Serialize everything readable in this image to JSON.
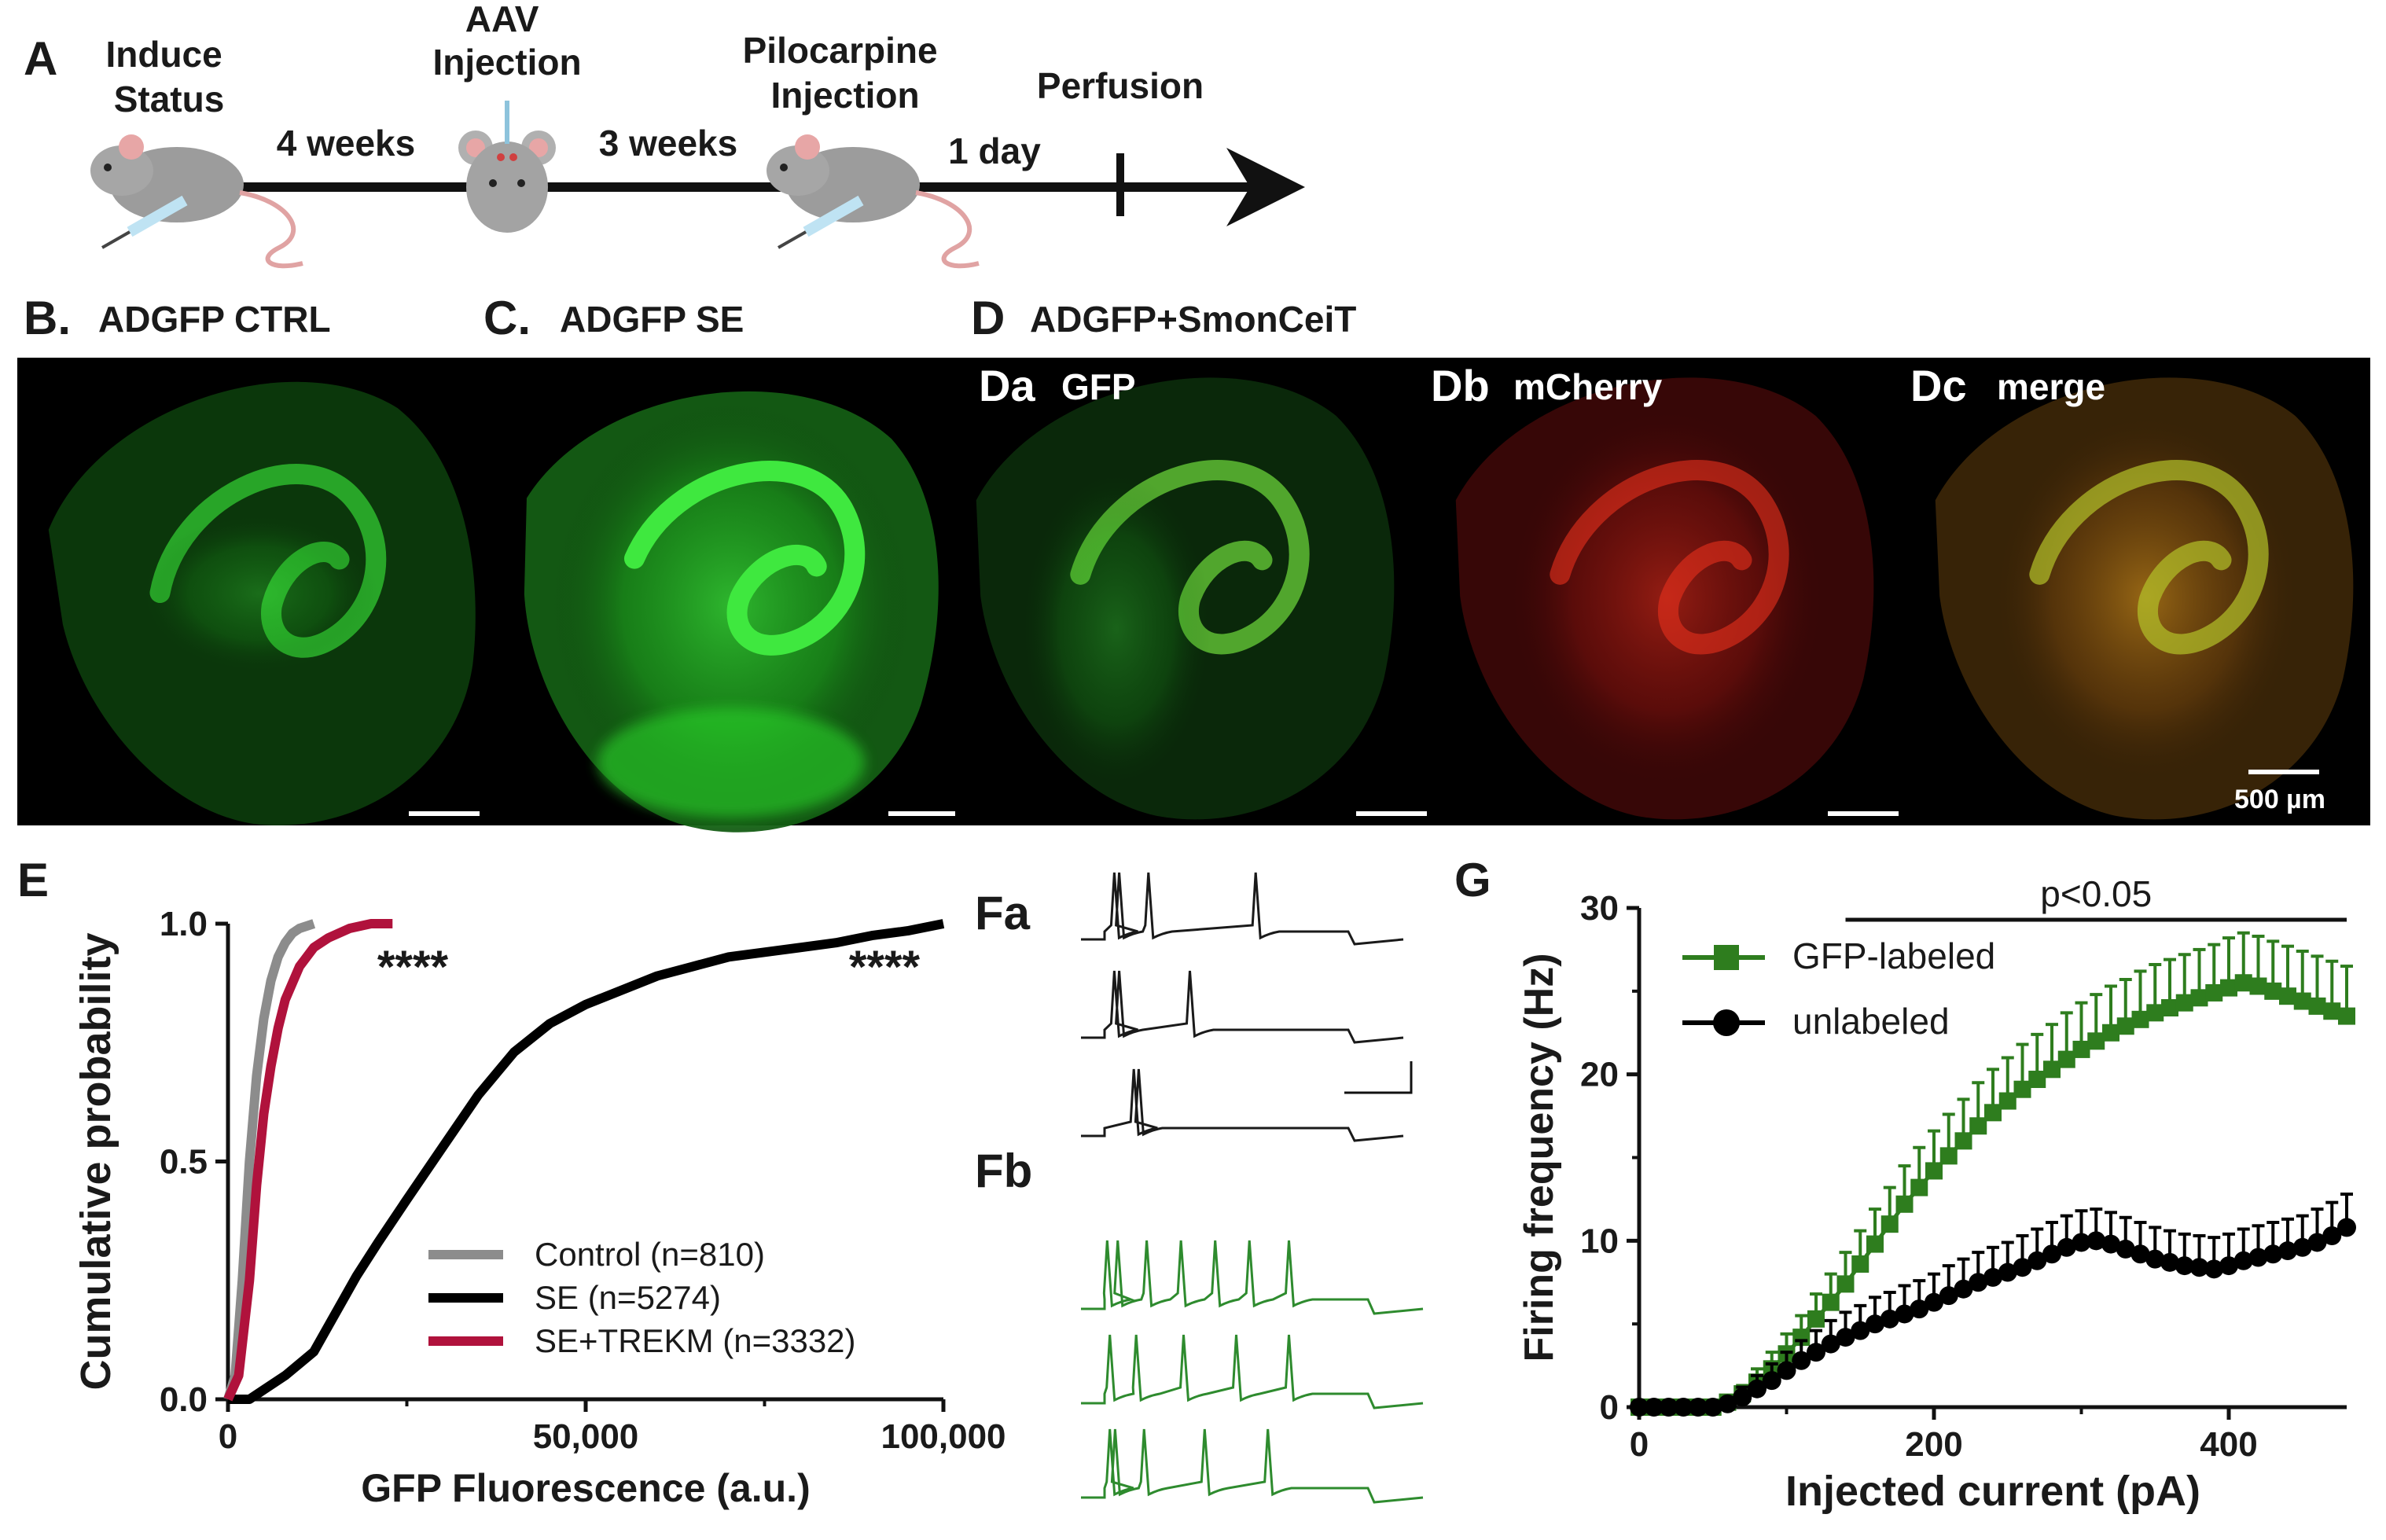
{
  "panel_A": {
    "letter": "A",
    "steps": [
      "Induce\nStatus",
      "AAV\nInjection",
      "Pilocarpine\nInjection",
      "Perfusion"
    ],
    "intervals": [
      "4 weeks",
      "3 weeks",
      "1 day"
    ]
  },
  "images": {
    "B": {
      "letter": "B.",
      "title": "ADGFP CTRL"
    },
    "C": {
      "letter": "C.",
      "title": "ADGFP SE"
    },
    "D": {
      "letter": "D",
      "title": "ADGFP+SmonCeiT"
    },
    "Da": {
      "letter": "Da",
      "title": "GFP"
    },
    "Db": {
      "letter": "Db",
      "title": "mCherry"
    },
    "Dc": {
      "letter": "Dc",
      "title": "merge"
    },
    "scale_bar": "500 µm",
    "colors": {
      "gfp": "#2fd42f",
      "mcherry": "#e3241c",
      "background": "#000000"
    }
  },
  "panel_E": {
    "letter": "E"
  },
  "panel_F": {
    "letter_a": "Fa",
    "letter_b": "Fb",
    "trace_colors": {
      "a": "#1a1a1a",
      "b": "#2e8b2e"
    }
  },
  "panel_G": {
    "letter": "G"
  },
  "chart_data": [
    {
      "type": "line",
      "panel": "E",
      "xlabel": "GFP Fluorescence (a.u.)",
      "ylabel": "Cumulative probability",
      "xlim": [
        0,
        100000
      ],
      "ylim": [
        0,
        1.0
      ],
      "xticks": [
        "0",
        "50,000",
        "100,000"
      ],
      "yticks": [
        "0.0",
        "0.5",
        "1.0"
      ],
      "legend_position": "bottom-right",
      "annotations": [
        "****",
        "****"
      ],
      "series": [
        {
          "name": "Control (n=810)",
          "color": "#8c8c8c",
          "x": [
            0,
            1000,
            2000,
            3000,
            4000,
            5000,
            6000,
            7000,
            8000,
            9000,
            10000,
            12000
          ],
          "y": [
            0,
            0.05,
            0.25,
            0.5,
            0.68,
            0.8,
            0.88,
            0.93,
            0.96,
            0.98,
            0.99,
            1.0
          ]
        },
        {
          "name": "SE (n=5274)",
          "color": "#000000",
          "x": [
            0,
            3000,
            5000,
            8000,
            12000,
            15000,
            18000,
            21000,
            25000,
            30000,
            35000,
            40000,
            45000,
            50000,
            55000,
            60000,
            65000,
            70000,
            75000,
            80000,
            85000,
            90000,
            95000,
            100000
          ],
          "y": [
            0,
            0,
            0.02,
            0.05,
            0.1,
            0.18,
            0.26,
            0.33,
            0.42,
            0.53,
            0.64,
            0.73,
            0.79,
            0.83,
            0.86,
            0.89,
            0.91,
            0.93,
            0.94,
            0.95,
            0.96,
            0.975,
            0.985,
            1.0
          ]
        },
        {
          "name": "SE+TREKM (n=3332)",
          "color": "#b0123c",
          "x": [
            0,
            1500,
            3000,
            4000,
            5000,
            6000,
            7000,
            8000,
            10000,
            12000,
            14000,
            17000,
            20000,
            23000
          ],
          "y": [
            0,
            0.05,
            0.25,
            0.45,
            0.6,
            0.7,
            0.78,
            0.84,
            0.91,
            0.95,
            0.97,
            0.99,
            1.0,
            1.0
          ]
        }
      ]
    },
    {
      "type": "line",
      "panel": "G",
      "xlabel": "Injected current (pA)",
      "ylabel": "Firing frequency (Hz)",
      "xlim": [
        0,
        480
      ],
      "ylim": [
        0,
        30
      ],
      "xticks": [
        "0",
        "200",
        "400"
      ],
      "yticks": [
        "0",
        "10",
        "20",
        "30"
      ],
      "legend_position": "top-left",
      "significance": {
        "text": "p<0.05",
        "x_start": 140,
        "x_end": 480
      },
      "series": [
        {
          "name": "GFP-labeled",
          "color": "#2e7d1e",
          "marker": "square",
          "x": [
            0,
            10,
            20,
            30,
            40,
            50,
            60,
            70,
            80,
            90,
            100,
            110,
            120,
            130,
            140,
            150,
            160,
            170,
            180,
            190,
            200,
            210,
            220,
            230,
            240,
            250,
            260,
            270,
            280,
            290,
            300,
            310,
            320,
            330,
            340,
            350,
            360,
            370,
            380,
            390,
            400,
            410,
            420,
            430,
            440,
            450,
            460,
            470,
            480
          ],
          "y": [
            0,
            0,
            0,
            0,
            0,
            0,
            0.3,
            0.8,
            1.5,
            2.3,
            3.2,
            4.2,
            5.3,
            6.3,
            7.4,
            8.6,
            9.8,
            11.0,
            12.2,
            13.2,
            14.2,
            15.1,
            16.0,
            16.9,
            17.7,
            18.4,
            19.1,
            19.7,
            20.3,
            20.9,
            21.5,
            22.0,
            22.5,
            22.9,
            23.3,
            23.7,
            24.0,
            24.3,
            24.6,
            24.9,
            25.2,
            25.5,
            25.3,
            25.0,
            24.7,
            24.4,
            24.1,
            23.8,
            23.5
          ],
          "err": [
            0,
            0,
            0,
            0,
            0,
            0,
            0.2,
            0.5,
            0.8,
            1.0,
            1.2,
            1.3,
            1.5,
            1.7,
            1.9,
            2.0,
            2.1,
            2.2,
            2.3,
            2.4,
            2.4,
            2.5,
            2.5,
            2.6,
            2.6,
            2.6,
            2.7,
            2.7,
            2.7,
            2.8,
            2.8,
            2.8,
            2.8,
            2.8,
            2.9,
            2.9,
            2.9,
            2.9,
            2.9,
            2.9,
            3.0,
            3.0,
            3.0,
            3.0,
            3.0,
            3.0,
            3.0,
            3.0,
            3.0
          ]
        },
        {
          "name": "unlabeled",
          "color": "#000000",
          "marker": "circle",
          "x": [
            0,
            10,
            20,
            30,
            40,
            50,
            60,
            70,
            80,
            90,
            100,
            110,
            120,
            130,
            140,
            150,
            160,
            170,
            180,
            190,
            200,
            210,
            220,
            230,
            240,
            250,
            260,
            270,
            280,
            290,
            300,
            310,
            320,
            330,
            340,
            350,
            360,
            370,
            380,
            390,
            400,
            410,
            420,
            430,
            440,
            450,
            460,
            470,
            480
          ],
          "y": [
            0,
            0,
            0,
            0,
            0,
            0,
            0.2,
            0.6,
            1.1,
            1.6,
            2.2,
            2.8,
            3.3,
            3.8,
            4.2,
            4.6,
            5.0,
            5.3,
            5.6,
            5.9,
            6.3,
            6.7,
            7.1,
            7.5,
            7.8,
            8.1,
            8.4,
            8.8,
            9.2,
            9.6,
            9.9,
            10.0,
            9.8,
            9.5,
            9.2,
            8.9,
            8.7,
            8.5,
            8.4,
            8.3,
            8.5,
            8.8,
            9.0,
            9.2,
            9.4,
            9.6,
            9.9,
            10.3,
            10.8
          ],
          "err": [
            0,
            0,
            0,
            0,
            0,
            0,
            0.3,
            0.6,
            0.8,
            1.0,
            1.1,
            1.2,
            1.3,
            1.4,
            1.5,
            1.5,
            1.6,
            1.6,
            1.7,
            1.7,
            1.7,
            1.8,
            1.8,
            1.8,
            1.8,
            1.8,
            1.9,
            1.9,
            1.9,
            1.9,
            1.9,
            1.9,
            1.9,
            1.9,
            1.9,
            1.9,
            1.9,
            1.9,
            1.9,
            1.9,
            1.9,
            1.9,
            1.9,
            1.9,
            1.9,
            1.9,
            2.0,
            2.0,
            2.0
          ]
        }
      ]
    }
  ]
}
